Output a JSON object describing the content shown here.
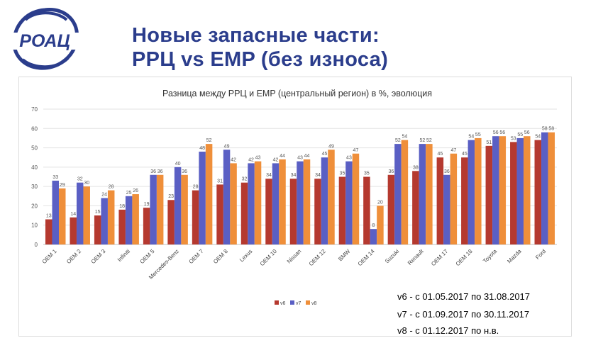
{
  "slide": {
    "logo_text": "РОАЦ",
    "title_line1": "Новые запасные части:",
    "title_line2": "РРЦ vs EMP (без износа)"
  },
  "legend_notes": [
    "v6 - с 01.05.2017 по 31.08.2017",
    "v7 - с 01.09.2017 по 30.11.2017",
    "v8 - с 01.12.2017 по н.в."
  ],
  "colors": {
    "v6": "#b5392f",
    "v7": "#5a5fc4",
    "v8": "#ef8f3a",
    "title": "#2b3d8c",
    "logo": "#2b3d8c"
  },
  "chart_data": {
    "type": "bar",
    "title": "Разница между РРЦ и EMP (центральный регион) в %, эволюция",
    "xlabel": "",
    "ylabel": "",
    "ylim": [
      0,
      70
    ],
    "yticks": [
      0,
      10,
      20,
      30,
      40,
      50,
      60,
      70
    ],
    "grid": true,
    "legend_position": "bottom",
    "categories": [
      "OEM 1",
      "OEM 2",
      "OEM 3",
      "Infiniti",
      "OEM 5",
      "Mercedes-Benz",
      "OEM 7",
      "OEM 8",
      "Lexus",
      "OEM 10",
      "Nissan",
      "OEM 12",
      "BMW",
      "OEM 14",
      "Suzuki",
      "Renault",
      "OEM 17",
      "OEM 18",
      "Toyota",
      "Mazda",
      "Ford"
    ],
    "series": [
      {
        "name": "v6",
        "values": [
          13,
          14,
          15,
          18,
          19,
          23,
          28,
          31,
          32,
          34,
          34,
          34,
          35,
          35,
          36,
          38,
          45,
          45,
          51,
          53,
          54
        ]
      },
      {
        "name": "v7",
        "values": [
          33,
          32,
          24,
          25,
          36,
          40,
          48,
          49,
          42,
          42,
          43,
          45,
          43,
          8,
          52,
          52,
          36,
          54,
          56,
          55,
          58
        ]
      },
      {
        "name": "v8",
        "values": [
          29,
          30,
          28,
          26,
          36,
          36,
          52,
          42,
          43,
          44,
          44,
          49,
          47,
          20,
          54,
          52,
          47,
          55,
          56,
          56,
          58
        ]
      }
    ]
  }
}
